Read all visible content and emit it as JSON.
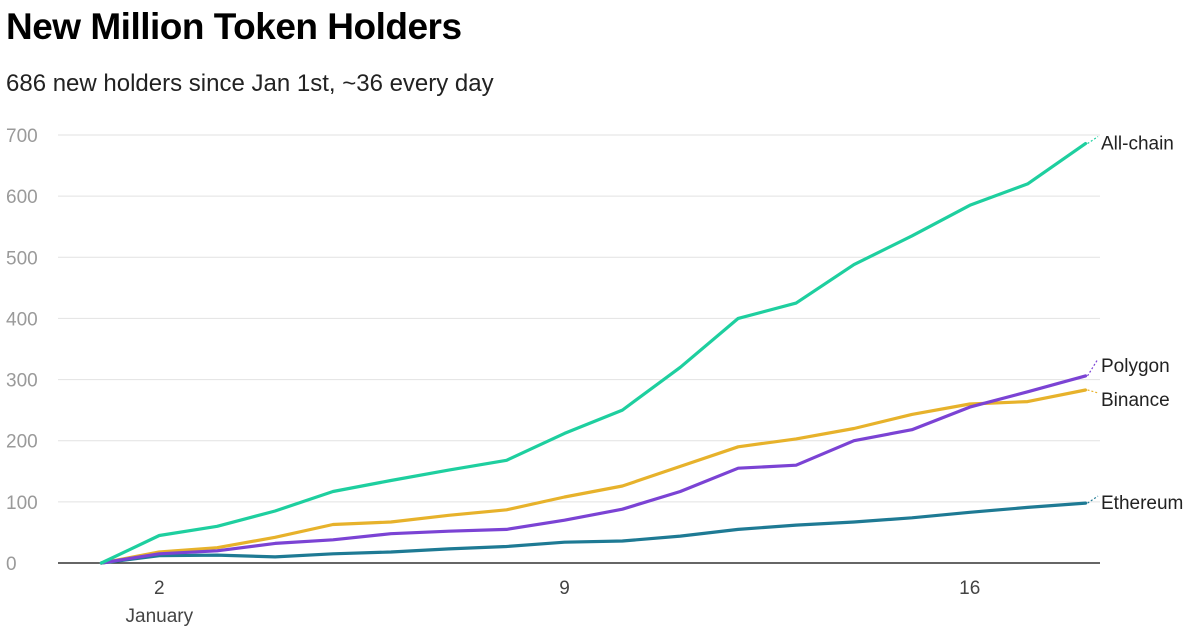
{
  "chart_data": {
    "type": "line",
    "title": "New Million Token Holders",
    "subtitle": "686 new holders since Jan 1st, ~36 every day",
    "x": [
      1,
      2,
      3,
      4,
      5,
      6,
      7,
      8,
      9,
      10,
      11,
      12,
      13,
      14,
      15,
      16,
      17,
      18
    ],
    "x_ticks": [
      {
        "value": 2,
        "label": "2",
        "sublabel": "January"
      },
      {
        "value": 9,
        "label": "9",
        "sublabel": ""
      },
      {
        "value": 16,
        "label": "16",
        "sublabel": ""
      }
    ],
    "xlim": [
      0.25,
      18.25
    ],
    "ylim": [
      0,
      700
    ],
    "y_ticks": [
      0,
      100,
      200,
      300,
      400,
      500,
      600,
      700
    ],
    "grid": true,
    "legend": "direct labels at line ends",
    "series": [
      {
        "name": "All-chain",
        "color": "#1ecf9f",
        "values": [
          0,
          45,
          60,
          85,
          117,
          135,
          152,
          168,
          212,
          250,
          320,
          400,
          425,
          488,
          535,
          585,
          620,
          686
        ]
      },
      {
        "name": "Polygon",
        "color": "#7b43d4",
        "values": [
          0,
          15,
          20,
          32,
          38,
          48,
          52,
          55,
          70,
          88,
          117,
          155,
          160,
          200,
          218,
          255,
          280,
          306
        ]
      },
      {
        "name": "Binance",
        "color": "#e7b22b",
        "values": [
          0,
          18,
          25,
          42,
          63,
          67,
          78,
          87,
          108,
          126,
          158,
          190,
          203,
          220,
          243,
          260,
          264,
          283
        ]
      },
      {
        "name": "Ethereum",
        "color": "#1e7a94",
        "values": [
          0,
          12,
          13,
          10,
          15,
          18,
          23,
          27,
          34,
          36,
          44,
          55,
          62,
          67,
          74,
          83,
          91,
          98
        ]
      }
    ]
  }
}
